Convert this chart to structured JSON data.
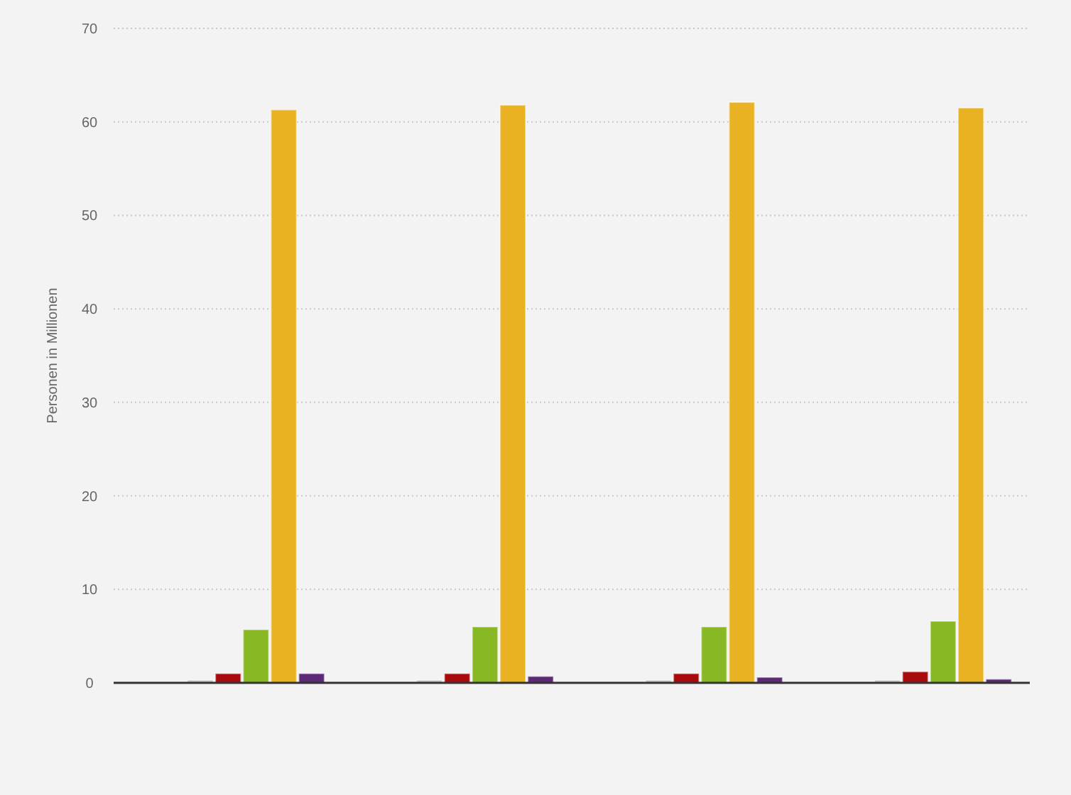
{
  "chart_data": {
    "type": "bar",
    "ylabel": "Personen in Millionen",
    "categories": [
      null,
      null,
      null,
      null
    ],
    "series": [
      {
        "values": [
          null,
          null,
          null,
          null
        ]
      },
      {
        "values": [
          null,
          null,
          null,
          null
        ]
      },
      {
        "color": "#c4c4c4",
        "values": [
          0.3,
          0.3,
          0.3,
          0.3
        ]
      },
      {
        "color": "#a90a0e",
        "values": [
          1.0,
          1.0,
          1.0,
          1.2
        ]
      },
      {
        "color": "#88b925",
        "values": [
          5.7,
          6.0,
          6.0,
          6.6
        ]
      },
      {
        "color": "#e9b223",
        "values": [
          61.3,
          61.8,
          62.1,
          61.5
        ]
      },
      {
        "color": "#5c2977",
        "values": [
          1.0,
          0.7,
          0.6,
          0.4
        ]
      }
    ],
    "ylim": [
      0,
      70
    ],
    "yticks": [
      0,
      10,
      20,
      30,
      40,
      50,
      60,
      70
    ],
    "grid": "y",
    "tick_labels": "y"
  }
}
